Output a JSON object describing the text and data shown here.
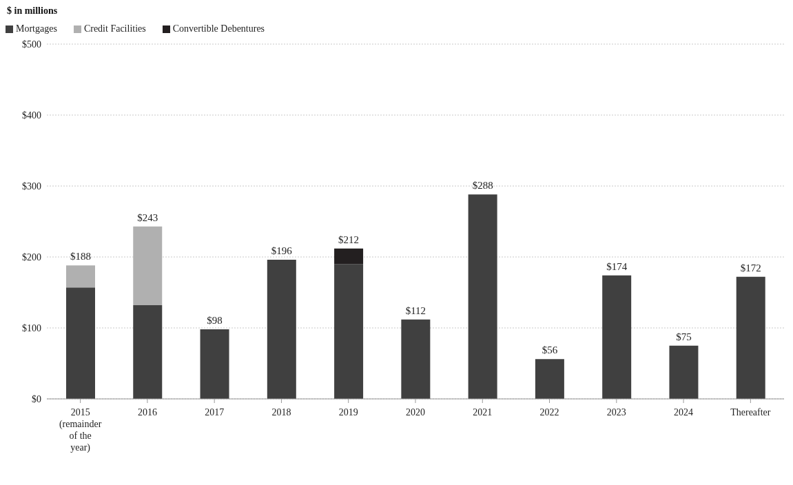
{
  "chart_data": {
    "type": "bar",
    "title": "$ in millions",
    "stacked": true,
    "categories": [
      "2015 (remainder of the year)",
      "2016",
      "2017",
      "2018",
      "2019",
      "2020",
      "2021",
      "2022",
      "2023",
      "2024",
      "Thereafter"
    ],
    "series": [
      {
        "name": "Mortgages",
        "color": "#404040",
        "values": [
          157,
          132,
          98,
          196,
          190,
          112,
          288,
          56,
          174,
          75,
          172
        ]
      },
      {
        "name": "Credit Facilities",
        "color": "#b0b0b0",
        "values": [
          31,
          111,
          null,
          null,
          null,
          null,
          null,
          null,
          null,
          null,
          null
        ]
      },
      {
        "name": "Convertible Debentures",
        "color": "#231f20",
        "values": [
          null,
          null,
          null,
          null,
          22,
          null,
          null,
          null,
          null,
          null,
          null
        ]
      }
    ],
    "totals": [
      "$188",
      "$243",
      "$98",
      "$196",
      "$212",
      "$112",
      "$288",
      "$56",
      "$174",
      "$75",
      "$172"
    ],
    "ylim": [
      0,
      500
    ],
    "yticks": [
      {
        "value": 0,
        "label": "$0"
      },
      {
        "value": 100,
        "label": "$100"
      },
      {
        "value": 200,
        "label": "$200"
      },
      {
        "value": 300,
        "label": "$300"
      },
      {
        "value": 400,
        "label": "$400"
      },
      {
        "value": 500,
        "label": "$500"
      }
    ],
    "grid": "y",
    "legend": "top left"
  }
}
